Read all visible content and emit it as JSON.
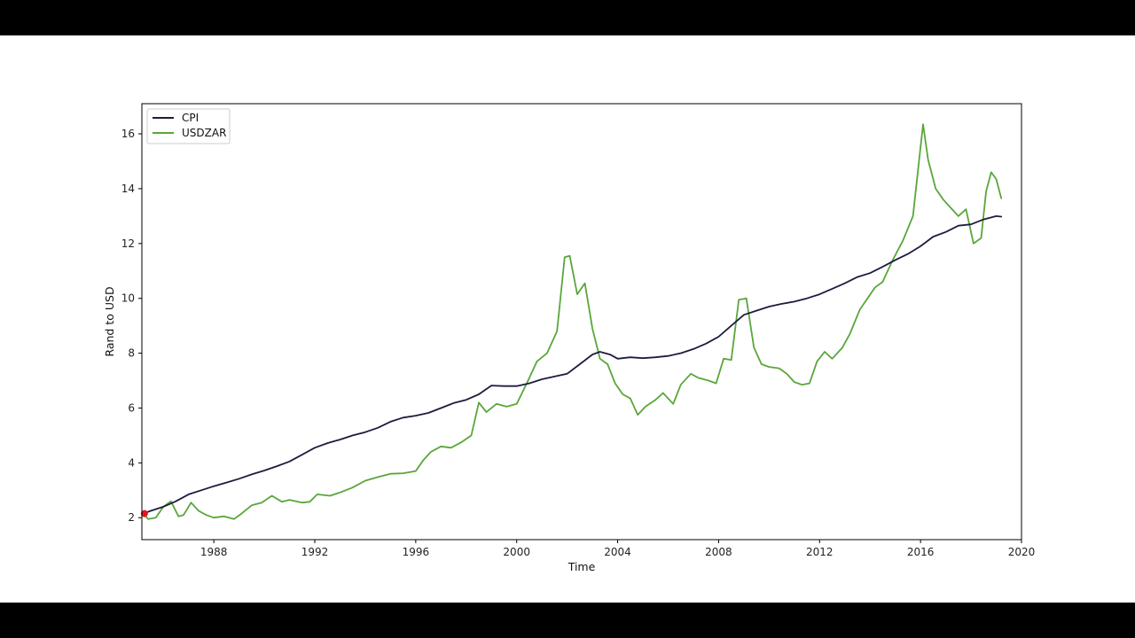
{
  "chart_data": {
    "type": "line",
    "title": "",
    "xlabel": "Time",
    "ylabel": "Rand to USD",
    "xlim": [
      1985.15,
      2020.0
    ],
    "ylim": [
      1.2,
      17.1
    ],
    "x_ticks": [
      1988,
      1992,
      1996,
      2000,
      2004,
      2008,
      2012,
      2016,
      2020
    ],
    "y_ticks": [
      2,
      4,
      6,
      8,
      10,
      12,
      14,
      16
    ],
    "grid": false,
    "legend_position": "upper-left",
    "marker": {
      "x": 1985.25,
      "y": 2.15,
      "color": "#e8141c"
    },
    "series": [
      {
        "name": "CPI",
        "color": "#1e1b40",
        "points": [
          [
            1985.2,
            2.15
          ],
          [
            1985.5,
            2.25
          ],
          [
            1986.0,
            2.4
          ],
          [
            1986.5,
            2.6
          ],
          [
            1987.0,
            2.85
          ],
          [
            1987.5,
            3.0
          ],
          [
            1988.0,
            3.15
          ],
          [
            1988.5,
            3.28
          ],
          [
            1989.0,
            3.42
          ],
          [
            1989.5,
            3.58
          ],
          [
            1990.0,
            3.72
          ],
          [
            1990.5,
            3.88
          ],
          [
            1991.0,
            4.05
          ],
          [
            1991.5,
            4.3
          ],
          [
            1992.0,
            4.55
          ],
          [
            1992.5,
            4.72
          ],
          [
            1993.0,
            4.85
          ],
          [
            1993.5,
            5.0
          ],
          [
            1994.0,
            5.12
          ],
          [
            1994.5,
            5.28
          ],
          [
            1995.0,
            5.5
          ],
          [
            1995.5,
            5.65
          ],
          [
            1996.0,
            5.72
          ],
          [
            1996.5,
            5.82
          ],
          [
            1997.0,
            6.0
          ],
          [
            1997.5,
            6.18
          ],
          [
            1998.0,
            6.3
          ],
          [
            1998.5,
            6.5
          ],
          [
            1999.0,
            6.82
          ],
          [
            1999.5,
            6.8
          ],
          [
            2000.0,
            6.8
          ],
          [
            2000.5,
            6.9
          ],
          [
            2001.0,
            7.05
          ],
          [
            2001.5,
            7.15
          ],
          [
            2002.0,
            7.25
          ],
          [
            2002.5,
            7.6
          ],
          [
            2003.0,
            7.95
          ],
          [
            2003.3,
            8.05
          ],
          [
            2003.7,
            7.95
          ],
          [
            2004.0,
            7.8
          ],
          [
            2004.5,
            7.85
          ],
          [
            2005.0,
            7.82
          ],
          [
            2005.5,
            7.85
          ],
          [
            2006.0,
            7.9
          ],
          [
            2006.5,
            8.0
          ],
          [
            2007.0,
            8.15
          ],
          [
            2007.5,
            8.35
          ],
          [
            2008.0,
            8.6
          ],
          [
            2008.5,
            9.0
          ],
          [
            2009.0,
            9.4
          ],
          [
            2009.5,
            9.55
          ],
          [
            2010.0,
            9.7
          ],
          [
            2010.5,
            9.8
          ],
          [
            2011.0,
            9.88
          ],
          [
            2011.5,
            10.0
          ],
          [
            2012.0,
            10.15
          ],
          [
            2012.5,
            10.35
          ],
          [
            2013.0,
            10.55
          ],
          [
            2013.5,
            10.78
          ],
          [
            2014.0,
            10.92
          ],
          [
            2014.5,
            11.15
          ],
          [
            2015.0,
            11.4
          ],
          [
            2015.5,
            11.62
          ],
          [
            2016.0,
            11.9
          ],
          [
            2016.5,
            12.25
          ],
          [
            2017.0,
            12.42
          ],
          [
            2017.5,
            12.65
          ],
          [
            2018.0,
            12.7
          ],
          [
            2018.5,
            12.88
          ],
          [
            2019.0,
            13.0
          ],
          [
            2019.2,
            12.98
          ]
        ]
      },
      {
        "name": "USDZAR",
        "color": "#5aa63a",
        "points": [
          [
            1985.2,
            2.15
          ],
          [
            1985.4,
            1.95
          ],
          [
            1985.7,
            2.0
          ],
          [
            1986.0,
            2.4
          ],
          [
            1986.3,
            2.6
          ],
          [
            1986.6,
            2.05
          ],
          [
            1986.8,
            2.1
          ],
          [
            1987.1,
            2.55
          ],
          [
            1987.4,
            2.25
          ],
          [
            1987.7,
            2.1
          ],
          [
            1988.0,
            2.0
          ],
          [
            1988.4,
            2.05
          ],
          [
            1988.8,
            1.95
          ],
          [
            1989.1,
            2.15
          ],
          [
            1989.5,
            2.45
          ],
          [
            1989.9,
            2.55
          ],
          [
            1990.3,
            2.8
          ],
          [
            1990.7,
            2.58
          ],
          [
            1991.0,
            2.65
          ],
          [
            1991.5,
            2.55
          ],
          [
            1991.8,
            2.58
          ],
          [
            1992.1,
            2.85
          ],
          [
            1992.6,
            2.8
          ],
          [
            1993.0,
            2.92
          ],
          [
            1993.5,
            3.1
          ],
          [
            1994.0,
            3.35
          ],
          [
            1994.5,
            3.48
          ],
          [
            1995.0,
            3.6
          ],
          [
            1995.5,
            3.62
          ],
          [
            1996.0,
            3.7
          ],
          [
            1996.3,
            4.1
          ],
          [
            1996.6,
            4.4
          ],
          [
            1997.0,
            4.6
          ],
          [
            1997.4,
            4.55
          ],
          [
            1997.8,
            4.75
          ],
          [
            1998.2,
            5.0
          ],
          [
            1998.5,
            6.2
          ],
          [
            1998.8,
            5.85
          ],
          [
            1999.2,
            6.15
          ],
          [
            1999.6,
            6.05
          ],
          [
            2000.0,
            6.15
          ],
          [
            2000.4,
            6.9
          ],
          [
            2000.8,
            7.7
          ],
          [
            2001.2,
            8.0
          ],
          [
            2001.6,
            8.8
          ],
          [
            2001.9,
            11.5
          ],
          [
            2002.1,
            11.55
          ],
          [
            2002.4,
            10.15
          ],
          [
            2002.7,
            10.55
          ],
          [
            2003.0,
            8.9
          ],
          [
            2003.3,
            7.8
          ],
          [
            2003.6,
            7.6
          ],
          [
            2003.9,
            6.9
          ],
          [
            2004.2,
            6.5
          ],
          [
            2004.5,
            6.35
          ],
          [
            2004.8,
            5.75
          ],
          [
            2005.1,
            6.05
          ],
          [
            2005.5,
            6.3
          ],
          [
            2005.8,
            6.55
          ],
          [
            2006.2,
            6.15
          ],
          [
            2006.5,
            6.85
          ],
          [
            2006.9,
            7.25
          ],
          [
            2007.2,
            7.1
          ],
          [
            2007.6,
            7.0
          ],
          [
            2007.9,
            6.9
          ],
          [
            2008.2,
            7.8
          ],
          [
            2008.5,
            7.75
          ],
          [
            2008.8,
            9.95
          ],
          [
            2009.1,
            10.0
          ],
          [
            2009.4,
            8.2
          ],
          [
            2009.7,
            7.6
          ],
          [
            2010.0,
            7.5
          ],
          [
            2010.4,
            7.45
          ],
          [
            2010.7,
            7.25
          ],
          [
            2011.0,
            6.95
          ],
          [
            2011.3,
            6.85
          ],
          [
            2011.6,
            6.9
          ],
          [
            2011.9,
            7.7
          ],
          [
            2012.2,
            8.05
          ],
          [
            2012.5,
            7.8
          ],
          [
            2012.9,
            8.2
          ],
          [
            2013.2,
            8.7
          ],
          [
            2013.6,
            9.6
          ],
          [
            2013.9,
            10.0
          ],
          [
            2014.2,
            10.4
          ],
          [
            2014.5,
            10.6
          ],
          [
            2014.9,
            11.4
          ],
          [
            2015.3,
            12.1
          ],
          [
            2015.7,
            13.0
          ],
          [
            2016.0,
            15.5
          ],
          [
            2016.1,
            16.35
          ],
          [
            2016.3,
            15.05
          ],
          [
            2016.6,
            14.0
          ],
          [
            2016.9,
            13.6
          ],
          [
            2017.2,
            13.3
          ],
          [
            2017.5,
            13.0
          ],
          [
            2017.8,
            13.25
          ],
          [
            2018.1,
            12.0
          ],
          [
            2018.4,
            12.2
          ],
          [
            2018.6,
            13.9
          ],
          [
            2018.8,
            14.6
          ],
          [
            2019.0,
            14.35
          ],
          [
            2019.2,
            13.65
          ]
        ]
      }
    ]
  }
}
